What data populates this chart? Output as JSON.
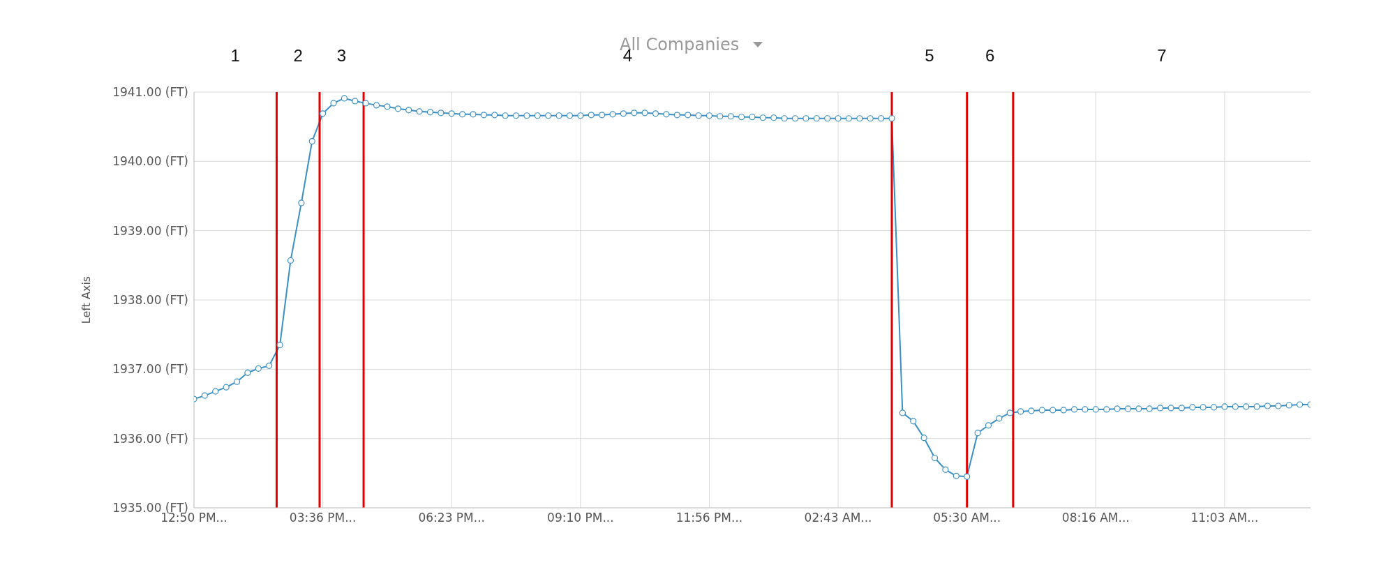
{
  "chart_data": {
    "type": "line",
    "subtitle": "All Companies",
    "ylabel": "Left Axis",
    "categories": [
      "12:50 PM...",
      null,
      null,
      null,
      null,
      null,
      null,
      null,
      null,
      null,
      null,
      null,
      "03:36 PM...",
      null,
      null,
      null,
      null,
      null,
      null,
      null,
      null,
      null,
      null,
      null,
      "06:23 PM...",
      null,
      null,
      null,
      null,
      null,
      null,
      null,
      null,
      null,
      null,
      null,
      "09:10 PM...",
      null,
      null,
      null,
      null,
      null,
      null,
      null,
      null,
      null,
      null,
      null,
      "11:56 PM...",
      null,
      null,
      null,
      null,
      null,
      null,
      null,
      null,
      null,
      null,
      null,
      "02:43 AM...",
      null,
      null,
      null,
      null,
      null,
      null,
      null,
      null,
      null,
      null,
      null,
      "05:30 AM...",
      null,
      null,
      null,
      null,
      null,
      null,
      null,
      null,
      null,
      null,
      null,
      "08:16 AM...",
      null,
      null,
      null,
      null,
      null,
      null,
      null,
      null,
      null,
      null,
      null,
      "11:03 AM...",
      null,
      null,
      null,
      null,
      null,
      null,
      null,
      null
    ],
    "series": [
      {
        "color": "#3a8fc4",
        "values": [
          1936.57,
          1936.62,
          1936.68,
          1936.74,
          1936.82,
          1936.95,
          1937.01,
          1937.05,
          1937.35,
          1938.57,
          1939.4,
          1940.29,
          1940.69,
          1940.84,
          1940.91,
          1940.87,
          1940.84,
          1940.81,
          1940.79,
          1940.76,
          1940.74,
          1940.72,
          1940.71,
          1940.7,
          1940.69,
          1940.68,
          1940.68,
          1940.67,
          1940.67,
          1940.66,
          1940.66,
          1940.66,
          1940.66,
          1940.66,
          1940.66,
          1940.66,
          1940.66,
          1940.67,
          1940.67,
          1940.68,
          1940.69,
          1940.7,
          1940.7,
          1940.69,
          1940.68,
          1940.67,
          1940.67,
          1940.66,
          1940.66,
          1940.65,
          1940.65,
          1940.64,
          1940.64,
          1940.63,
          1940.63,
          1940.62,
          1940.62,
          1940.62,
          1940.62,
          1940.62,
          1940.62,
          1940.62,
          1940.62,
          1940.62,
          1940.62,
          1940.62,
          1936.37,
          1936.25,
          1936.01,
          1935.72,
          1935.55,
          1935.46,
          1935.45,
          1936.08,
          1936.19,
          1936.29,
          1936.37,
          1936.39,
          1936.4,
          1936.41,
          1936.41,
          1936.41,
          1936.42,
          1936.42,
          1936.42,
          1936.42,
          1936.43,
          1936.43,
          1936.43,
          1936.43,
          1936.44,
          1936.44,
          1936.44,
          1936.45,
          1936.45,
          1936.45,
          1936.46,
          1936.46,
          1936.46,
          1936.46,
          1936.47,
          1936.47,
          1936.48,
          1936.49,
          1936.49
        ]
      }
    ],
    "ylim": [
      1935,
      1941
    ],
    "yticks": [
      {
        "value": 1935,
        "label": "1935.00 (FT)"
      },
      {
        "value": 1936,
        "label": "1936.00 (FT)"
      },
      {
        "value": 1937,
        "label": "1937.00 (FT)"
      },
      {
        "value": 1938,
        "label": "1938.00 (FT)"
      },
      {
        "value": 1939,
        "label": "1939.00 (FT)"
      },
      {
        "value": 1940,
        "label": "1940.00 (FT)"
      },
      {
        "value": 1941,
        "label": "1941.00 (FT)"
      }
    ],
    "grid": true,
    "marker": "circle",
    "line_style": "solid",
    "annotations": [
      "1",
      "2",
      "3",
      "4",
      "5",
      "6",
      "7"
    ]
  }
}
